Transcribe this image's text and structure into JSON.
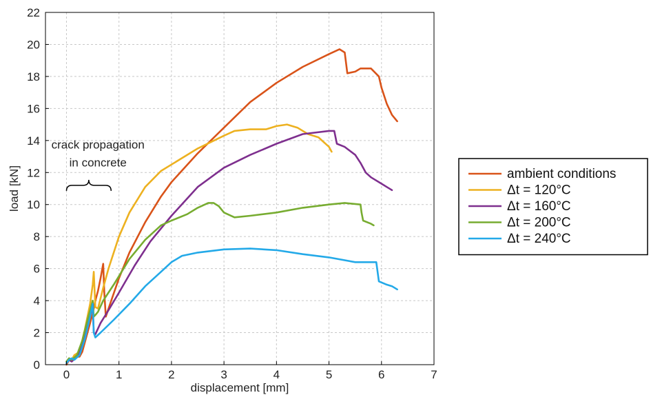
{
  "chart_data": {
    "type": "line",
    "xlabel": "displacement [mm]",
    "ylabel": "load [kN]",
    "xlim": [
      -0.4,
      7
    ],
    "ylim": [
      0,
      22
    ],
    "xticks": [
      0,
      1,
      2,
      3,
      4,
      5,
      6,
      7
    ],
    "yticks": [
      0,
      2,
      4,
      6,
      8,
      10,
      12,
      14,
      16,
      18,
      20,
      22
    ],
    "grid": true,
    "legend_position": "right, outside plot",
    "annotation": {
      "text_lines": [
        "crack propagation",
        "in concrete"
      ],
      "x": 0.6,
      "y": 13.5,
      "brace_x": [
        0.0,
        0.85
      ],
      "brace_y": 11.2
    },
    "series": [
      {
        "name": "ambient conditions",
        "color": "#d95319",
        "points": [
          [
            0,
            0
          ],
          [
            0.05,
            0.3
          ],
          [
            0.1,
            0.2
          ],
          [
            0.15,
            0.5
          ],
          [
            0.25,
            0.5
          ],
          [
            0.3,
            0.8
          ],
          [
            0.4,
            2.0
          ],
          [
            0.5,
            3.2
          ],
          [
            0.55,
            4.0
          ],
          [
            0.6,
            4.6
          ],
          [
            0.65,
            5.4
          ],
          [
            0.7,
            6.3
          ],
          [
            0.72,
            4.5
          ],
          [
            0.75,
            3.0
          ],
          [
            0.8,
            3.5
          ],
          [
            1.0,
            5.4
          ],
          [
            1.2,
            7.0
          ],
          [
            1.5,
            8.9
          ],
          [
            1.8,
            10.5
          ],
          [
            2.0,
            11.4
          ],
          [
            2.5,
            13.2
          ],
          [
            3.0,
            14.8
          ],
          [
            3.5,
            16.4
          ],
          [
            4.0,
            17.6
          ],
          [
            4.5,
            18.6
          ],
          [
            5.0,
            19.4
          ],
          [
            5.2,
            19.7
          ],
          [
            5.3,
            19.5
          ],
          [
            5.35,
            18.2
          ],
          [
            5.5,
            18.3
          ],
          [
            5.6,
            18.5
          ],
          [
            5.8,
            18.5
          ],
          [
            5.95,
            18.0
          ],
          [
            6.0,
            17.3
          ],
          [
            6.1,
            16.3
          ],
          [
            6.2,
            15.6
          ],
          [
            6.3,
            15.2
          ]
        ]
      },
      {
        "name": "Δt = 120°C",
        "color": "#edb120",
        "points": [
          [
            0,
            0.2
          ],
          [
            0.05,
            0.4
          ],
          [
            0.1,
            0.3
          ],
          [
            0.15,
            0.6
          ],
          [
            0.25,
            0.8
          ],
          [
            0.35,
            2.2
          ],
          [
            0.45,
            3.8
          ],
          [
            0.5,
            5.0
          ],
          [
            0.52,
            5.8
          ],
          [
            0.55,
            3.6
          ],
          [
            0.6,
            3.5
          ],
          [
            0.7,
            4.8
          ],
          [
            0.8,
            6.0
          ],
          [
            1.0,
            8.0
          ],
          [
            1.2,
            9.5
          ],
          [
            1.5,
            11.1
          ],
          [
            1.8,
            12.1
          ],
          [
            2.0,
            12.5
          ],
          [
            2.5,
            13.5
          ],
          [
            3.0,
            14.3
          ],
          [
            3.2,
            14.6
          ],
          [
            3.5,
            14.7
          ],
          [
            3.8,
            14.7
          ],
          [
            4.0,
            14.9
          ],
          [
            4.2,
            15.0
          ],
          [
            4.4,
            14.8
          ],
          [
            4.6,
            14.4
          ],
          [
            4.8,
            14.2
          ],
          [
            4.9,
            13.9
          ],
          [
            5.0,
            13.6
          ],
          [
            5.05,
            13.3
          ]
        ]
      },
      {
        "name": "Δt = 160°C",
        "color": "#7e2f8e",
        "points": [
          [
            0,
            0.1
          ],
          [
            0.05,
            0.3
          ],
          [
            0.1,
            0.2
          ],
          [
            0.2,
            0.5
          ],
          [
            0.3,
            1.2
          ],
          [
            0.4,
            2.5
          ],
          [
            0.5,
            3.6
          ],
          [
            0.52,
            2.0
          ],
          [
            0.55,
            1.9
          ],
          [
            0.65,
            2.6
          ],
          [
            0.8,
            3.4
          ],
          [
            1.0,
            4.5
          ],
          [
            1.3,
            6.2
          ],
          [
            1.6,
            7.7
          ],
          [
            2.0,
            9.3
          ],
          [
            2.5,
            11.1
          ],
          [
            3.0,
            12.3
          ],
          [
            3.5,
            13.1
          ],
          [
            4.0,
            13.8
          ],
          [
            4.5,
            14.4
          ],
          [
            5.0,
            14.6
          ],
          [
            5.1,
            14.6
          ],
          [
            5.15,
            13.8
          ],
          [
            5.3,
            13.6
          ],
          [
            5.5,
            13.1
          ],
          [
            5.6,
            12.6
          ],
          [
            5.7,
            12.0
          ],
          [
            5.8,
            11.7
          ],
          [
            6.0,
            11.3
          ],
          [
            6.1,
            11.1
          ],
          [
            6.2,
            10.9
          ]
        ]
      },
      {
        "name": "Δt = 200°C",
        "color": "#77ac30",
        "points": [
          [
            0,
            0.2
          ],
          [
            0.05,
            0.4
          ],
          [
            0.1,
            0.3
          ],
          [
            0.2,
            0.6
          ],
          [
            0.3,
            1.5
          ],
          [
            0.4,
            2.8
          ],
          [
            0.5,
            4.0
          ],
          [
            0.52,
            3.0
          ],
          [
            0.55,
            3.1
          ],
          [
            0.6,
            3.3
          ],
          [
            0.7,
            4.0
          ],
          [
            0.9,
            5.0
          ],
          [
            1.2,
            6.6
          ],
          [
            1.5,
            7.8
          ],
          [
            1.8,
            8.7
          ],
          [
            2.0,
            9.0
          ],
          [
            2.3,
            9.4
          ],
          [
            2.5,
            9.8
          ],
          [
            2.7,
            10.1
          ],
          [
            2.8,
            10.1
          ],
          [
            2.9,
            9.9
          ],
          [
            3.0,
            9.5
          ],
          [
            3.2,
            9.2
          ],
          [
            3.5,
            9.3
          ],
          [
            4.0,
            9.5
          ],
          [
            4.5,
            9.8
          ],
          [
            5.0,
            10.0
          ],
          [
            5.3,
            10.1
          ],
          [
            5.6,
            10.0
          ],
          [
            5.62,
            9.5
          ],
          [
            5.65,
            9.0
          ],
          [
            5.8,
            8.8
          ],
          [
            5.85,
            8.7
          ]
        ]
      },
      {
        "name": "Δt = 240°C",
        "color": "#23a9e8",
        "points": [
          [
            0,
            0.1
          ],
          [
            0.05,
            0.3
          ],
          [
            0.1,
            0.4
          ],
          [
            0.15,
            0.3
          ],
          [
            0.25,
            0.6
          ],
          [
            0.35,
            1.6
          ],
          [
            0.45,
            3.0
          ],
          [
            0.5,
            3.8
          ],
          [
            0.52,
            2.0
          ],
          [
            0.55,
            1.7
          ],
          [
            0.65,
            2.0
          ],
          [
            0.9,
            2.8
          ],
          [
            1.2,
            3.8
          ],
          [
            1.5,
            4.9
          ],
          [
            1.8,
            5.8
          ],
          [
            2.0,
            6.4
          ],
          [
            2.2,
            6.8
          ],
          [
            2.5,
            7.0
          ],
          [
            3.0,
            7.2
          ],
          [
            3.5,
            7.25
          ],
          [
            4.0,
            7.15
          ],
          [
            4.5,
            6.9
          ],
          [
            5.0,
            6.7
          ],
          [
            5.5,
            6.4
          ],
          [
            5.9,
            6.4
          ],
          [
            5.95,
            5.2
          ],
          [
            6.1,
            5.0
          ],
          [
            6.2,
            4.9
          ],
          [
            6.3,
            4.7
          ]
        ]
      }
    ]
  }
}
